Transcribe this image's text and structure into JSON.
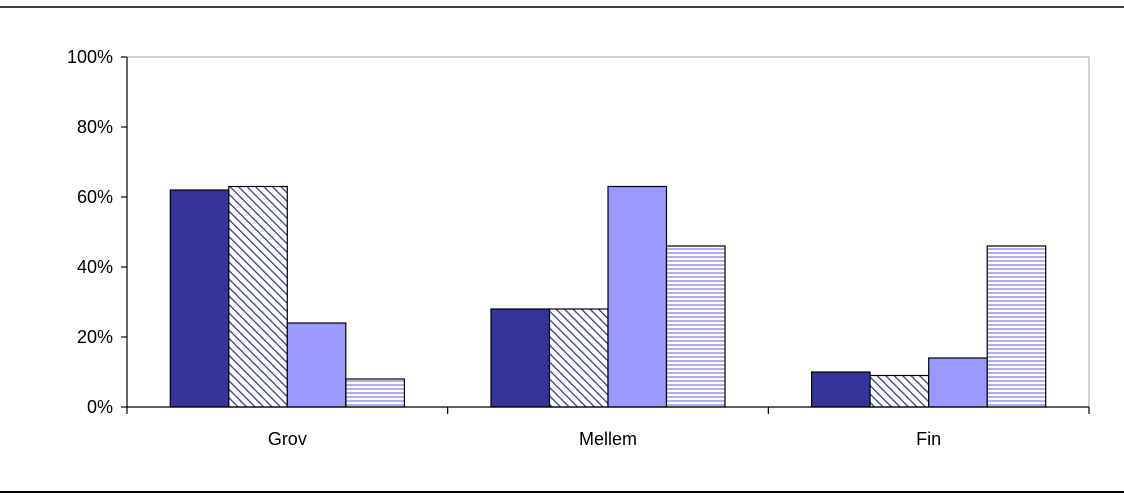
{
  "chart_data": {
    "type": "bar",
    "title": "",
    "xlabel": "",
    "ylabel": "",
    "categories": [
      "Grov",
      "Mellem",
      "Fin"
    ],
    "ylim": [
      0,
      100
    ],
    "yticks": [
      "0%",
      "20%",
      "40%",
      "60%",
      "80%",
      "100%"
    ],
    "grid": false,
    "legend": "none",
    "series": [
      {
        "values": [
          62,
          28,
          10
        ],
        "fill": "solid",
        "color": "#333399"
      },
      {
        "values": [
          63,
          28,
          9
        ],
        "fill": "diagonal-hatch",
        "color": "#333399"
      },
      {
        "values": [
          24,
          63,
          14
        ],
        "fill": "solid",
        "color": "#9999ff"
      },
      {
        "values": [
          8,
          46,
          46
        ],
        "fill": "horizontal-hatch",
        "color": "#9999ff"
      }
    ]
  }
}
